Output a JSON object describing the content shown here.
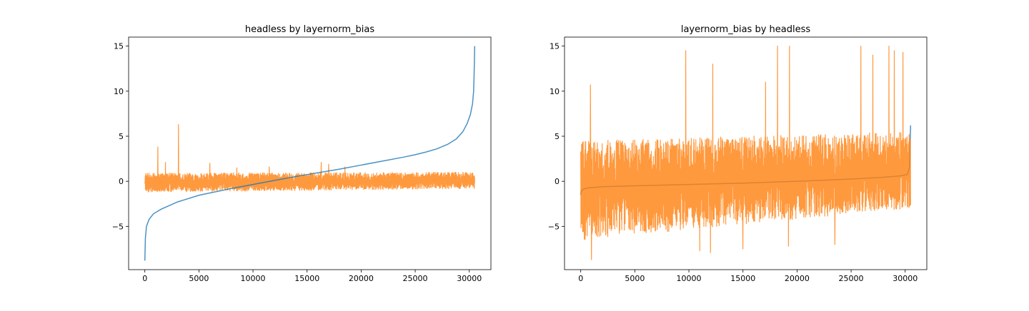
{
  "chart_data": [
    {
      "type": "line",
      "title": "headless by layernorm_bias",
      "xlabel": "",
      "ylabel": "",
      "xlim": [
        -1500,
        32000
      ],
      "ylim": [
        -9.8,
        16.0
      ],
      "x_ticks": [
        0,
        5000,
        10000,
        15000,
        20000,
        25000,
        30000
      ],
      "x_tick_labels": [
        "0",
        "5000",
        "10000",
        "15000",
        "20000",
        "25000",
        "30000"
      ],
      "y_ticks": [
        -5,
        0,
        5,
        10,
        15
      ],
      "y_tick_labels": [
        "−5",
        "0",
        "5",
        "10",
        "15"
      ],
      "grid": false,
      "legend": "none",
      "series": [
        {
          "color": "#1f77b4",
          "alpha": 0.8,
          "shape": "sorted curve",
          "x": [
            0,
            50,
            150,
            400,
            800,
            1500,
            3000,
            5000,
            8000,
            10000,
            12000,
            15000,
            18000,
            20000,
            22000,
            24000,
            25000,
            26000,
            27000,
            28000,
            28800,
            29400,
            29800,
            30100,
            30300,
            30400,
            30450,
            30500
          ],
          "y": [
            -8.8,
            -6.3,
            -5.0,
            -4.2,
            -3.6,
            -3.1,
            -2.3,
            -1.55,
            -0.8,
            -0.35,
            0.1,
            0.75,
            1.35,
            1.8,
            2.25,
            2.7,
            2.95,
            3.25,
            3.6,
            4.1,
            4.7,
            5.5,
            6.4,
            7.4,
            8.6,
            10.0,
            12.0,
            15.0
          ]
        },
        {
          "color": "#ff7f0e",
          "alpha": 0.8,
          "shape": "noise band",
          "band_x": [
            0,
            30500
          ],
          "band_low": [
            -1.2,
            -0.8
          ],
          "band_high": [
            0.9,
            1.0
          ],
          "peaks_x": [
            1200,
            1900,
            3100,
            6000,
            8500,
            11500,
            16300,
            17000,
            18500
          ],
          "peaks_y": [
            3.8,
            2.1,
            6.3,
            2.0,
            1.5,
            1.6,
            2.1,
            1.9,
            1.6
          ],
          "points": 30500
        }
      ]
    },
    {
      "type": "line",
      "title": "layernorm_bias by headless",
      "xlabel": "",
      "ylabel": "",
      "xlim": [
        -1500,
        32000
      ],
      "ylim": [
        -9.8,
        16.0
      ],
      "x_ticks": [
        0,
        5000,
        10000,
        15000,
        20000,
        25000,
        30000
      ],
      "x_tick_labels": [
        "0",
        "5000",
        "10000",
        "15000",
        "20000",
        "25000",
        "30000"
      ],
      "y_ticks": [
        -5,
        0,
        5,
        10,
        15
      ],
      "y_tick_labels": [
        "−5",
        "0",
        "5",
        "10",
        "15"
      ],
      "grid": false,
      "legend": "none",
      "series": [
        {
          "color": "#1f77b4",
          "alpha": 0.8,
          "shape": "sorted curve",
          "x": [
            0,
            30,
            100,
            300,
            600,
            1000,
            2000,
            5000,
            10000,
            15000,
            20000,
            25000,
            28000,
            29500,
            30200,
            30400,
            30500
          ],
          "y": [
            -1.5,
            -1.2,
            -1.0,
            -0.85,
            -0.75,
            -0.7,
            -0.6,
            -0.5,
            -0.35,
            -0.2,
            0.0,
            0.25,
            0.45,
            0.6,
            0.75,
            1.5,
            6.2
          ],
          "points": 30500
        },
        {
          "color": "#ff7f0e",
          "alpha": 0.8,
          "shape": "noise band",
          "band_x": [
            0,
            30500
          ],
          "band_low": [
            -6.5,
            -3.0
          ],
          "band_high": [
            4.5,
            5.5
          ],
          "peaks_x": [
            900,
            9700,
            12200,
            17100,
            18200,
            19300,
            25900,
            27000,
            28500,
            29000,
            29800
          ],
          "peaks_y": [
            10.7,
            14.5,
            13.0,
            11.0,
            15.0,
            15.0,
            15.0,
            14.0,
            15.0,
            14.5,
            14.3
          ],
          "troughs_x": [
            1000,
            11000,
            12000,
            15000,
            19200,
            23500
          ],
          "troughs_y": [
            -8.7,
            -7.7,
            -7.9,
            -7.5,
            -7.2,
            -7.0
          ],
          "points": 30500
        }
      ]
    }
  ]
}
